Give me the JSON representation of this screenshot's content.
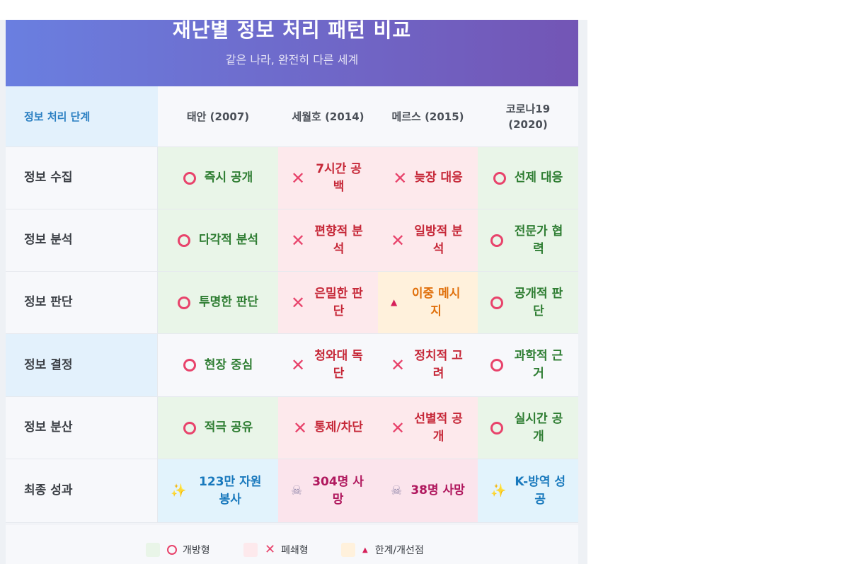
{
  "header": {
    "title": "재난별 정보 처리 패턴 비교",
    "subtitle": "같은 나라, 완전히 다른 세계"
  },
  "table": {
    "corner": "정보 처리 단계",
    "columns": [
      "태안 (2007)",
      "세월호 (2014)",
      "메르스 (2015)",
      "코로나19 (2020)"
    ],
    "rows": [
      {
        "label": "정보 수집",
        "cells": [
          "즉시 공개",
          "7시간 공백",
          "늦장 대응",
          "선제 대응"
        ]
      },
      {
        "label": "정보 분석",
        "cells": [
          "다각적 분석",
          "편향적 분석",
          "일방적 분석",
          "전문가 협력"
        ]
      },
      {
        "label": "정보 판단",
        "cells": [
          "투명한 판단",
          "은밀한 판단",
          "이중 메시지",
          "공개적 판단"
        ]
      },
      {
        "label": "정보 결정",
        "cells": [
          "현장 중심",
          "청와대 독단",
          "정치적 고려",
          "과학적 근거"
        ]
      },
      {
        "label": "정보 분산",
        "cells": [
          "적극 공유",
          "통제/차단",
          "선별적 공개",
          "실시간 공개"
        ]
      },
      {
        "label": "최종 성과",
        "cells": [
          "123만 자원봉사",
          "304명 사망",
          "38명 사망",
          "K-방역 성공"
        ]
      }
    ]
  },
  "legend": {
    "open": "개방형",
    "closed": "폐쇄형",
    "limit": "한계/개선점"
  },
  "colors": {
    "open_bg": "#e9f5e8",
    "open_text": "#2e7d32",
    "closed_bg": "#fde9ec",
    "closed_text": "#c62838",
    "limit_bg": "#fff1dc",
    "limit_text": "#e0700c",
    "header_gradient_start": "#6a7fe0",
    "header_gradient_end": "#7355b5"
  },
  "icons": {
    "open": "circle-o-icon",
    "closed": "x-mark-icon",
    "limit": "triangle-icon",
    "success": "sparkles-icon",
    "death": "skull-icon"
  }
}
